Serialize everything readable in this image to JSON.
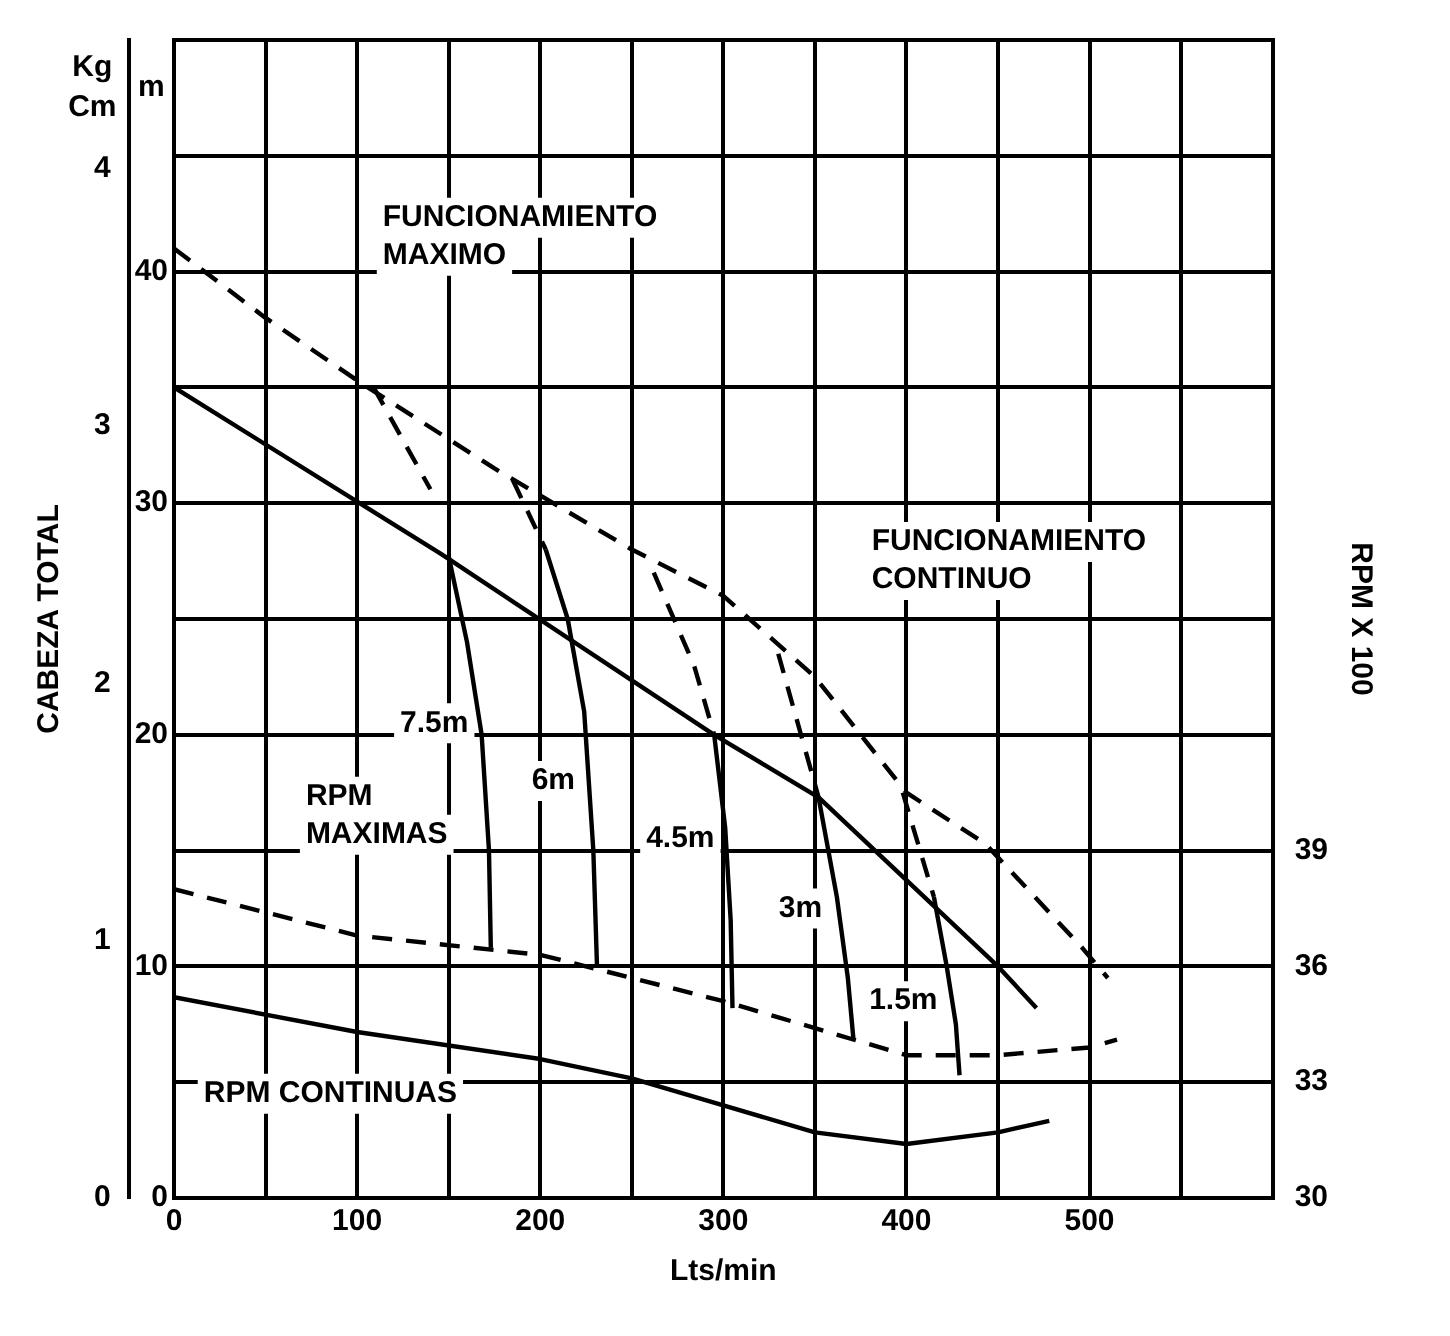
{
  "chart_data": {
    "type": "line",
    "xlabel": "Lts/min",
    "ylabel": "CABEZA TOTAL",
    "y2label": "RPM X 100",
    "y3label": "Kg Cm",
    "xlim": [
      0,
      600
    ],
    "xticks": [
      0,
      {
        "value": 50,
        "label": null
      },
      100,
      {
        "value": 150,
        "label": null
      },
      200,
      {
        "value": 250,
        "label": null
      },
      300,
      {
        "value": 350,
        "label": null
      },
      400,
      {
        "value": 450,
        "label": null
      },
      500,
      {
        "value": 550,
        "label": null
      },
      {
        "value": 600,
        "label": null
      }
    ],
    "ylim": [
      0,
      50
    ],
    "yticks": [
      0,
      {
        "value": 5,
        "label": null
      },
      10,
      {
        "value": 15,
        "label": null
      },
      20,
      {
        "value": 25,
        "label": null
      },
      30,
      {
        "value": 35,
        "label": null
      },
      40,
      {
        "value": 45,
        "label": null
      },
      {
        "value": 50,
        "label": null
      }
    ],
    "y2lim": [
      30,
      60
    ],
    "y2ticks": [
      30,
      33,
      36,
      39
    ],
    "y3lim": [
      0,
      4.5
    ],
    "y3ticks": [
      0,
      1,
      2,
      3,
      4
    ],
    "grid": true,
    "marker": "none",
    "series": [
      {
        "color": "#000000",
        "line_style": "dashed",
        "x": [
          0,
          50,
          100,
          175,
          250,
          300,
          350,
          400,
          443,
          496,
          510
        ],
        "values": [
          41,
          38,
          35.3,
          31.5,
          28,
          26,
          22.5,
          17.5,
          15.3,
          10.8,
          9.5
        ]
      },
      {
        "color": "#000000",
        "line_style": "solid",
        "x": [
          0,
          146,
          295,
          352,
          450,
          471
        ],
        "values": [
          35,
          27.8,
          20,
          17.3,
          10,
          8.2
        ]
      },
      {
        "color": "#000000",
        "line_style": "dashed",
        "axis": "y2",
        "x": [
          0,
          100,
          200,
          300,
          350,
          400,
          450,
          500,
          515
        ],
        "values": [
          38,
          36.8,
          36.3,
          35.1,
          34.4,
          33.7,
          33.7,
          33.9,
          34.1
        ]
      },
      {
        "color": "#000000",
        "line_style": "solid",
        "axis": "y2",
        "x": [
          0,
          100,
          200,
          250,
          300,
          350,
          400,
          450,
          478
        ],
        "values": [
          35.2,
          34.3,
          33.6,
          33.1,
          32.4,
          31.7,
          31.4,
          31.7,
          32
        ]
      },
      {
        "color": "#000000",
        "line_style": "dashed",
        "x": [
          109,
          140
        ],
        "values": [
          35,
          30.6
        ]
      },
      {
        "color": "#000000",
        "line_style": "solid",
        "x": [
          150,
          160,
          168,
          172,
          173
        ],
        "values": [
          27.7,
          24,
          20,
          15,
          10.8
        ]
      },
      {
        "color": "#000000",
        "line_style": "dashed",
        "x": [
          185,
          203
        ],
        "values": [
          31,
          28
        ]
      },
      {
        "color": "#000000",
        "line_style": "solid",
        "x": [
          203,
          215,
          224,
          229,
          231
        ],
        "values": [
          28,
          25,
          21,
          15,
          10
        ]
      },
      {
        "color": "#000000",
        "line_style": "dashed",
        "x": [
          262,
          284,
          295
        ],
        "values": [
          27,
          23,
          20
        ]
      },
      {
        "color": "#000000",
        "line_style": "solid",
        "x": [
          295,
          301,
          304,
          305
        ],
        "values": [
          20,
          16,
          12,
          8.2
        ]
      },
      {
        "color": "#000000",
        "line_style": "dashed",
        "x": [
          330,
          352
        ],
        "values": [
          23.5,
          17.3
        ]
      },
      {
        "color": "#000000",
        "line_style": "solid",
        "x": [
          352,
          362,
          368,
          371
        ],
        "values": [
          17.3,
          13,
          9.5,
          6.9
        ]
      },
      {
        "color": "#000000",
        "line_style": "dashed",
        "x": [
          398,
          415
        ],
        "values": [
          17.5,
          13
        ]
      },
      {
        "color": "#000000",
        "line_style": "solid",
        "x": [
          415,
          422,
          427,
          429
        ],
        "values": [
          13,
          10,
          7.5,
          5.3
        ]
      }
    ],
    "annotations": [
      "m",
      "FUNCIONAMIENTO MAXIMO",
      "FUNCIONAMIENTO CONTINUO",
      "RPM MAXIMAS",
      "RPM CONTINUAS",
      "7.5m",
      "6m",
      "4.5m",
      "3m",
      "1.5m"
    ]
  }
}
